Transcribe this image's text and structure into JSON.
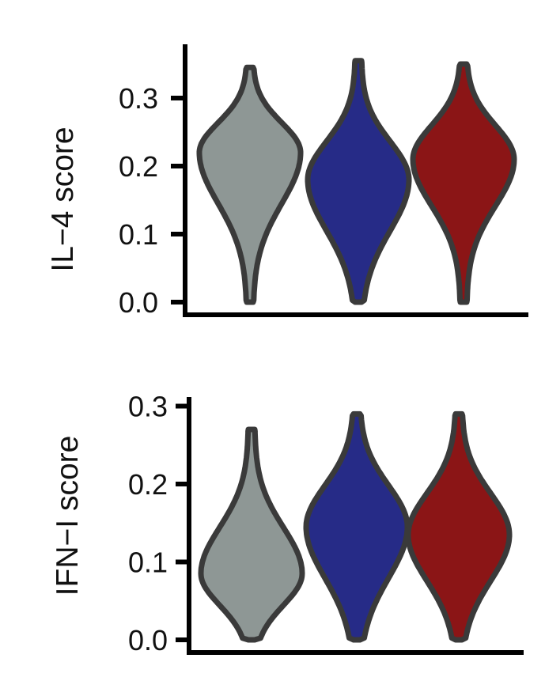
{
  "chart_data": [
    {
      "type": "violin",
      "ylabel": "IL−4 score",
      "ylim": [
        0,
        0.35
      ],
      "yticks": [
        0.0,
        0.1,
        0.2,
        0.3
      ],
      "ytick_labels": [
        "0.0",
        "0.1",
        "0.2",
        "0.3"
      ],
      "series": [
        {
          "color": "#8e9795",
          "min": 0.0,
          "max": 0.345,
          "mode": 0.22,
          "q10": 0.1,
          "q90": 0.29
        },
        {
          "color": "#262b87",
          "min": 0.0,
          "max": 0.355,
          "mode": 0.18,
          "q10": 0.06,
          "q90": 0.27
        },
        {
          "color": "#8b1516",
          "min": 0.0,
          "max": 0.35,
          "mode": 0.21,
          "q10": 0.1,
          "q90": 0.29
        }
      ]
    },
    {
      "type": "violin",
      "ylabel": "IFN−I score",
      "ylim": [
        0,
        0.3
      ],
      "yticks": [
        0.0,
        0.1,
        0.2,
        0.3
      ],
      "ytick_labels": [
        "0.0",
        "0.1",
        "0.2",
        "0.3"
      ],
      "series": [
        {
          "color": "#8e9795",
          "min": 0.0,
          "max": 0.27,
          "mode": 0.085,
          "q10": 0.02,
          "q90": 0.18
        },
        {
          "color": "#262b87",
          "min": 0.0,
          "max": 0.29,
          "mode": 0.145,
          "q10": 0.04,
          "q90": 0.23
        },
        {
          "color": "#8b1516",
          "min": 0.0,
          "max": 0.29,
          "mode": 0.135,
          "q10": 0.04,
          "q90": 0.22
        }
      ]
    }
  ]
}
